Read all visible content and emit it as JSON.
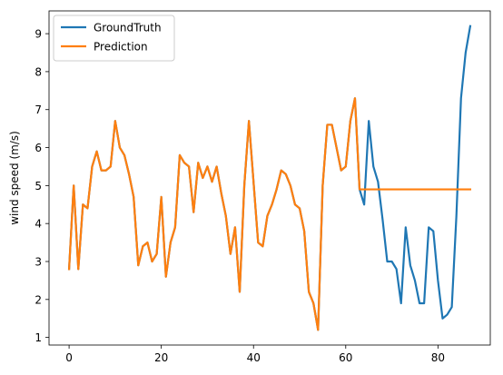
{
  "chart_data": {
    "type": "line",
    "title": "",
    "xlabel": "",
    "ylabel": "wind speed (m/s)",
    "xlim": [
      -4.35,
      91.35
    ],
    "ylim": [
      0.8,
      9.6
    ],
    "xticks": [
      0,
      20,
      40,
      60,
      80
    ],
    "yticks": [
      1,
      2,
      3,
      4,
      5,
      6,
      7,
      8,
      9
    ],
    "grid": false,
    "legend_position": "upper-left",
    "series": [
      {
        "name": "GroundTruth",
        "color": "#1f77b4",
        "x": [
          0,
          1,
          2,
          3,
          4,
          5,
          6,
          7,
          8,
          9,
          10,
          11,
          12,
          13,
          14,
          15,
          16,
          17,
          18,
          19,
          20,
          21,
          22,
          23,
          24,
          25,
          26,
          27,
          28,
          29,
          30,
          31,
          32,
          33,
          34,
          35,
          36,
          37,
          38,
          39,
          40,
          41,
          42,
          43,
          44,
          45,
          46,
          47,
          48,
          49,
          50,
          51,
          52,
          53,
          54,
          55,
          56,
          57,
          58,
          59,
          60,
          61,
          62,
          63,
          64,
          65,
          66,
          67,
          68,
          69,
          70,
          71,
          72,
          73,
          74,
          75,
          76,
          77,
          78,
          79,
          80,
          81,
          82,
          83,
          84,
          85,
          86,
          87
        ],
        "y": [
          2.8,
          5.0,
          2.8,
          4.5,
          4.4,
          5.5,
          5.9,
          5.4,
          5.4,
          5.5,
          6.7,
          6.0,
          5.8,
          5.3,
          4.7,
          2.9,
          3.4,
          3.5,
          3.0,
          3.2,
          4.7,
          2.6,
          3.5,
          3.9,
          5.8,
          5.6,
          5.5,
          4.3,
          5.6,
          5.2,
          5.5,
          5.1,
          5.5,
          4.8,
          4.2,
          3.2,
          3.9,
          2.2,
          5.0,
          6.7,
          5.1,
          3.5,
          3.4,
          4.2,
          4.5,
          4.9,
          5.4,
          5.3,
          5.0,
          4.5,
          4.4,
          3.8,
          2.2,
          1.9,
          1.2,
          5.0,
          6.6,
          6.6,
          6.0,
          5.4,
          5.5,
          6.7,
          7.3,
          4.9,
          4.5,
          6.7,
          5.5,
          5.1,
          4.1,
          3.0,
          3.0,
          2.8,
          1.9,
          3.9,
          2.9,
          2.5,
          1.9,
          1.9,
          3.9,
          3.8,
          2.5,
          1.5,
          1.6,
          1.8,
          4.2,
          7.3,
          8.5,
          9.2
        ]
      },
      {
        "name": "Prediction",
        "color": "#ff7f0e",
        "x": [
          0,
          1,
          2,
          3,
          4,
          5,
          6,
          7,
          8,
          9,
          10,
          11,
          12,
          13,
          14,
          15,
          16,
          17,
          18,
          19,
          20,
          21,
          22,
          23,
          24,
          25,
          26,
          27,
          28,
          29,
          30,
          31,
          32,
          33,
          34,
          35,
          36,
          37,
          38,
          39,
          40,
          41,
          42,
          43,
          44,
          45,
          46,
          47,
          48,
          49,
          50,
          51,
          52,
          53,
          54,
          55,
          56,
          57,
          58,
          59,
          60,
          61,
          62,
          63,
          64,
          65,
          66,
          67,
          68,
          69,
          70,
          71,
          72,
          73,
          74,
          75,
          76,
          77,
          78,
          79,
          80,
          81,
          82,
          83,
          84,
          85,
          86,
          87
        ],
        "y": [
          2.8,
          5.0,
          2.8,
          4.5,
          4.4,
          5.5,
          5.9,
          5.4,
          5.4,
          5.5,
          6.7,
          6.0,
          5.8,
          5.3,
          4.7,
          2.9,
          3.4,
          3.5,
          3.0,
          3.2,
          4.7,
          2.6,
          3.5,
          3.9,
          5.8,
          5.6,
          5.5,
          4.3,
          5.6,
          5.2,
          5.5,
          5.1,
          5.5,
          4.8,
          4.2,
          3.2,
          3.9,
          2.2,
          5.0,
          6.7,
          5.1,
          3.5,
          3.4,
          4.2,
          4.5,
          4.9,
          5.4,
          5.3,
          5.0,
          4.5,
          4.4,
          3.8,
          2.2,
          1.9,
          1.2,
          5.0,
          6.6,
          6.6,
          6.0,
          5.4,
          5.5,
          6.7,
          7.3,
          4.9,
          4.9,
          4.9,
          4.9,
          4.9,
          4.9,
          4.9,
          4.9,
          4.9,
          4.9,
          4.9,
          4.9,
          4.9,
          4.9,
          4.9,
          4.9,
          4.9,
          4.9,
          4.9,
          4.9,
          4.9,
          4.9,
          4.9,
          4.9,
          4.9
        ]
      }
    ]
  }
}
